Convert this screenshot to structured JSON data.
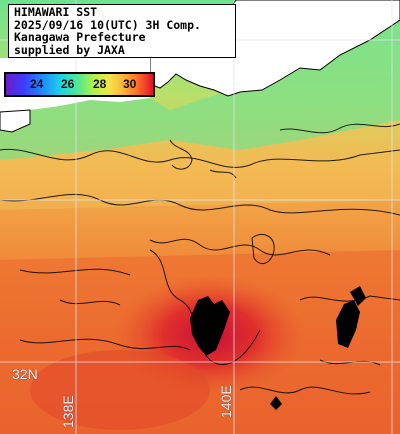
{
  "header": {
    "lines": [
      "HIMAWARI SST",
      "2025/09/16 10(UTC) 3H Comp.",
      "Kanagawa Prefecture",
      "supplied by JAXA"
    ]
  },
  "colorbar": {
    "ticks": [
      "24",
      "26",
      "28",
      "30"
    ]
  },
  "grid_labels": {
    "lat": "32N",
    "lon_west": "138E",
    "lon_east": "140E"
  },
  "colors": {
    "land": "#ffffff",
    "cool_water": "#6fe28a",
    "warm_water": "#f3a24a",
    "hot_water": "#e8482a",
    "hottest": "#c01838",
    "cloud_mask": "#000000"
  }
}
